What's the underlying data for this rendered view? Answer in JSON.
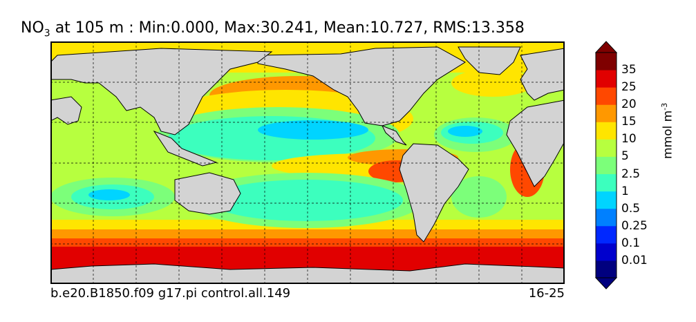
{
  "title": {
    "species": "NO",
    "species_sub": "3",
    "text": "at 105 m : Min:0.000, Max:30.241, Mean:10.727, RMS:13.358"
  },
  "footer": {
    "case_name": "b.e20.B1850.f09 g17.pi control.all.149",
    "years": "16-25"
  },
  "chart_data": {
    "type": "heatmap",
    "title": "NO3 at 105 m : Min:0.000, Max:30.241, Mean:10.727, RMS:13.358",
    "variable": "NO3",
    "depth_m": 105,
    "stats": {
      "min": 0.0,
      "max": 30.241,
      "mean": 10.727,
      "rms": 13.358
    },
    "projection": "equirectangular (global map)",
    "grid": true,
    "colorbar": {
      "label": "mmol m",
      "label_sup": "-3",
      "extend": "both",
      "levels": [
        "0.01",
        "0.1",
        "0.25",
        "0.5",
        "1",
        "2.5",
        "5",
        "10",
        "15",
        "20",
        "25",
        "35"
      ],
      "colors": [
        "#00007f",
        "#0000cd",
        "#0028ff",
        "#0080ff",
        "#00d4ff",
        "#3cffbe",
        "#7cff7a",
        "#b7ff3f",
        "#ffe500",
        "#ff9800",
        "#ff4800",
        "#e10000",
        "#7f0000"
      ],
      "land_color": "#d3d3d3"
    }
  }
}
